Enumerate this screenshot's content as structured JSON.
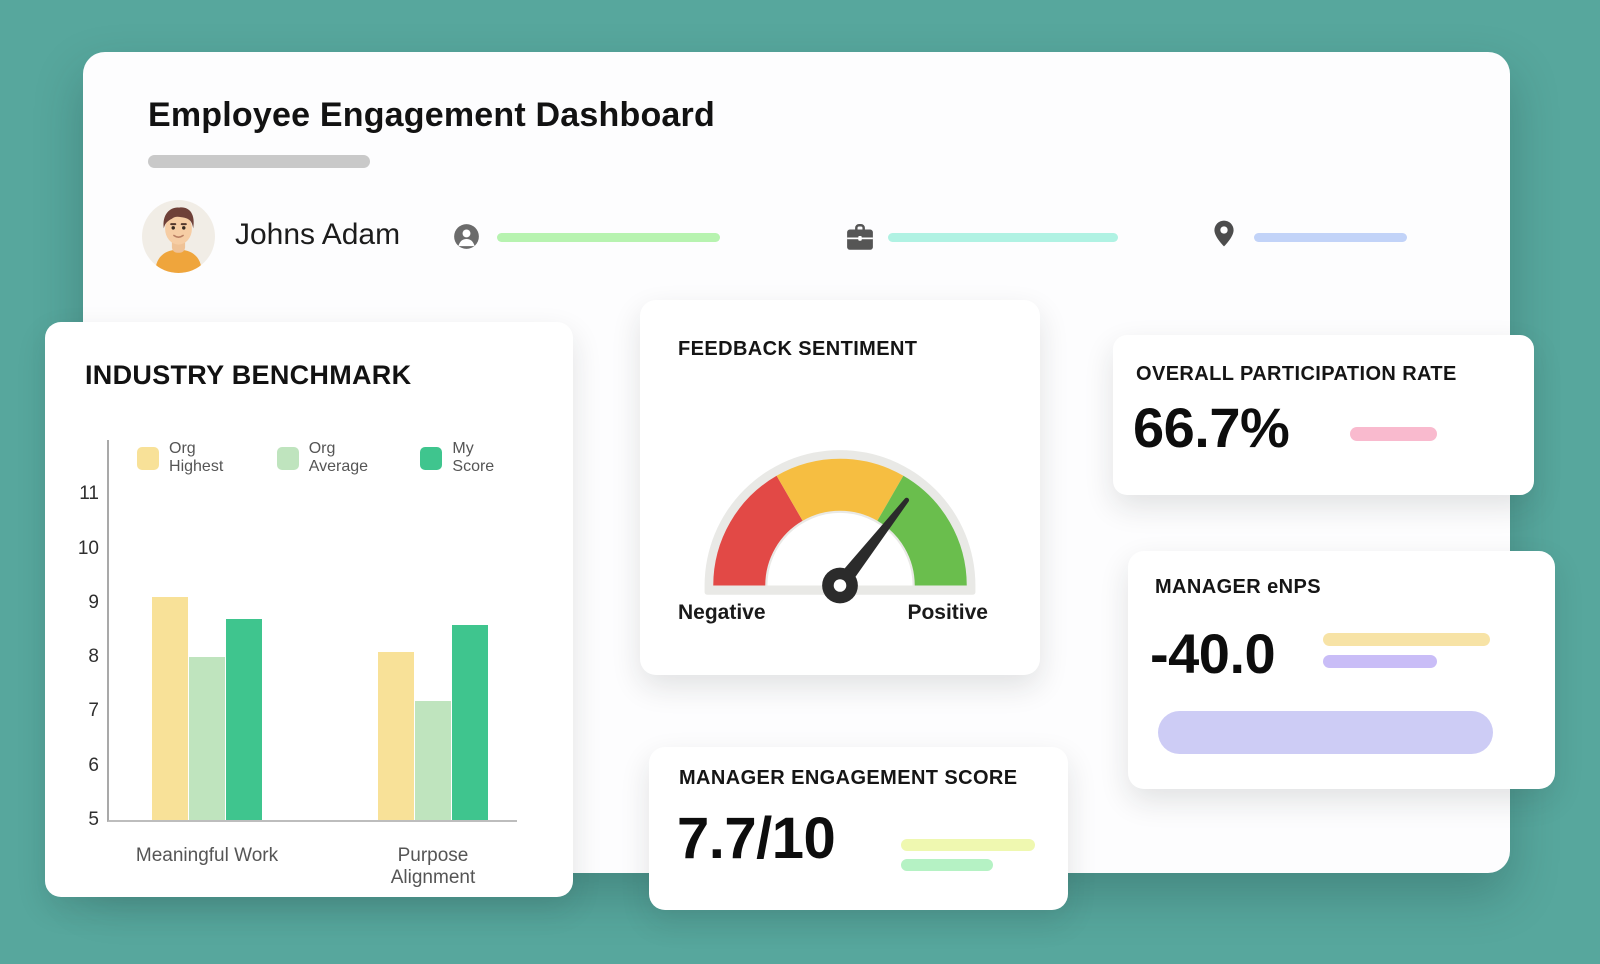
{
  "app": {
    "title": "Employee Engagement Dashboard"
  },
  "profile": {
    "name": "Johns Adam"
  },
  "cards": {
    "benchmark": {
      "title": "INDUSTRY BENCHMARK"
    },
    "sentiment": {
      "title": "FEEDBACK SENTIMENT"
    },
    "participation": {
      "title": "OVERALL PARTICIPATION RATE",
      "value": "66.7%"
    },
    "enps": {
      "title": "MANAGER eNPS",
      "value": "-40.0"
    },
    "engagement": {
      "title": "MANAGER ENGAGEMENT SCORE",
      "value": "7.7/10"
    }
  },
  "chart_data": [
    {
      "type": "bar",
      "title": "INDUSTRY BENCHMARK",
      "categories": [
        "Meaningful Work",
        "Purpose Alignment"
      ],
      "series": [
        {
          "name": "Org Highest",
          "color": "#F8E198",
          "values": [
            9.1,
            8.1
          ]
        },
        {
          "name": "Org Average",
          "color": "#BFE4BE",
          "values": [
            8.0,
            7.2
          ]
        },
        {
          "name": "My Score",
          "color": "#3FC58E",
          "values": [
            8.7,
            8.6
          ]
        }
      ],
      "xlabel": "",
      "ylabel": "",
      "ylim": [
        5,
        11
      ],
      "yticks": [
        5,
        6,
        7,
        8,
        9,
        10,
        11
      ],
      "legend_position": "top",
      "grid": false
    },
    {
      "type": "gauge",
      "title": "FEEDBACK SENTIMENT",
      "segments": [
        {
          "label": "negative",
          "color": "#E24946",
          "from_deg": 180,
          "to_deg": 120
        },
        {
          "label": "neutral",
          "color": "#F6BE41",
          "from_deg": 120,
          "to_deg": 60
        },
        {
          "label": "positive",
          "color": "#6ABE4D",
          "from_deg": 60,
          "to_deg": 0
        }
      ],
      "needle_angle_deg": 52,
      "axis_labels": [
        "Negative",
        "Positive"
      ]
    }
  ],
  "colors": {
    "background_teal": "#57A79D",
    "panel_white": "#FDFDFE",
    "title_underline_gray": "#C9C9C9",
    "profile_line_green": "#B7F3B0",
    "profile_line_cyan": "#B0F2E3",
    "profile_line_blue": "#C2D3F8",
    "participation_accent_pink": "#F9BACE",
    "enps_accent_yellow": "#F7E3A6",
    "enps_accent_purple": "#C9BDF7",
    "enps_pill_lavender": "#CDCCF5",
    "engagement_accent_lime": "#EFF8B0",
    "engagement_accent_mint": "#B5F2C4",
    "gauge_track_gray": "#E9E9E6",
    "needle_black": "#2B2B2B"
  }
}
